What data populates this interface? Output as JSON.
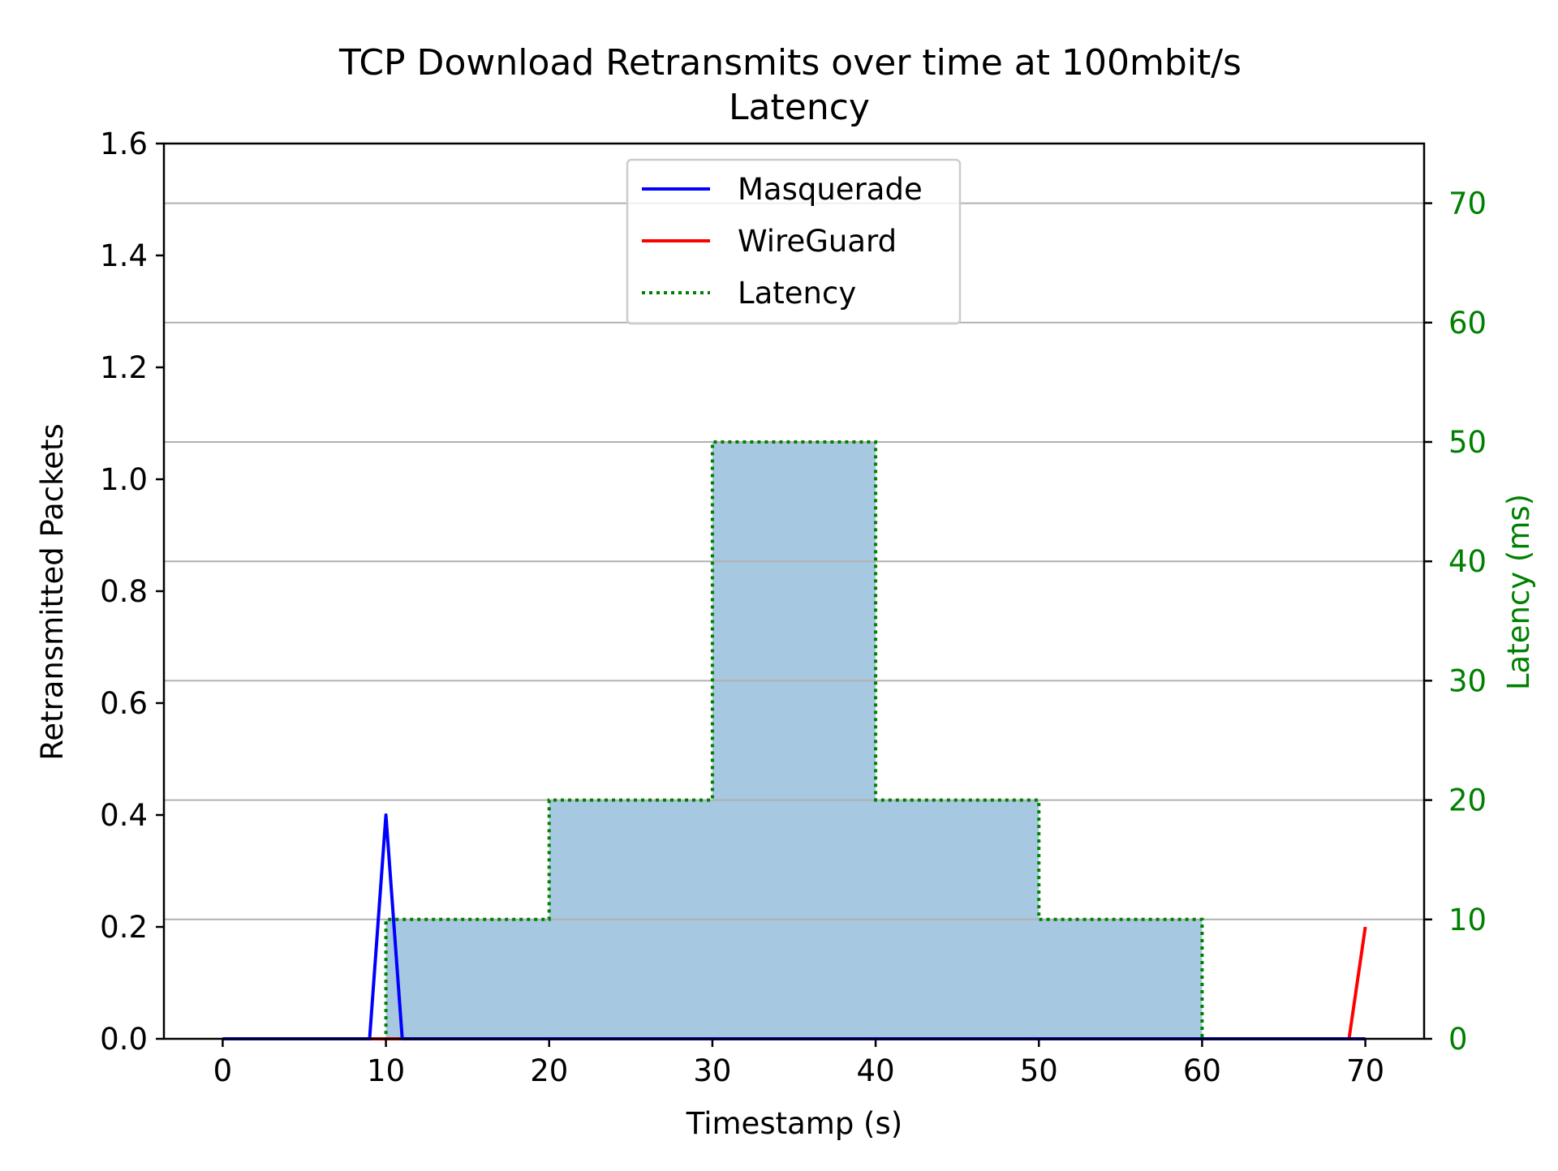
{
  "chart_data": {
    "type": "line",
    "title": "TCP Download Retransmits over time at 100mbit/s",
    "subtitle": "Latency",
    "xlabel": "Timestamp (s)",
    "ylabel": "Retransmitted Packets",
    "ylabel_right": "Latency (ms)",
    "xlim": [
      -3.6,
      73.6
    ],
    "ylim": [
      0,
      1.6
    ],
    "ylim_right": [
      0,
      75
    ],
    "xticks": [
      "0",
      "10",
      "20",
      "30",
      "40",
      "50",
      "60",
      "70"
    ],
    "yticks": [
      "0.0",
      "0.2",
      "0.4",
      "0.6",
      "0.8",
      "1.0",
      "1.2",
      "1.4",
      "1.6"
    ],
    "yticks_right": [
      "0",
      "10",
      "20",
      "30",
      "40",
      "50",
      "60",
      "70"
    ],
    "grid": "horizontal lines at right-axis ticks",
    "legend_position": "upper center",
    "colors": {
      "masquerade": "#0000ff",
      "wireguard": "#ff0000",
      "latency": "#008000",
      "fill": "#a6c8e0",
      "grid": "#b0b0b0",
      "right_axis": "#008000"
    },
    "series": [
      {
        "name": "Masquerade",
        "axis": "left",
        "style": "solid",
        "x": [
          0,
          1,
          2,
          3,
          4,
          5,
          6,
          7,
          8,
          9,
          10,
          11,
          12,
          13,
          14,
          15,
          16,
          17,
          18,
          19,
          20,
          21,
          22,
          23,
          24,
          25,
          26,
          27,
          28,
          29,
          30,
          31,
          32,
          33,
          34,
          35,
          36,
          37,
          38,
          39,
          40,
          41,
          42,
          43,
          44,
          45,
          46,
          47,
          48,
          49,
          50,
          51,
          52,
          53,
          54,
          55,
          56,
          57,
          58,
          59,
          60,
          61,
          62,
          63,
          64,
          65,
          66,
          67,
          68,
          69,
          70
        ],
        "values": [
          0,
          0,
          0,
          0,
          0,
          0,
          0,
          0,
          0,
          0,
          0.4,
          0,
          0,
          0,
          0,
          0,
          0,
          0,
          0,
          0,
          0,
          0,
          0,
          0,
          0,
          0,
          0,
          0,
          0,
          0,
          0,
          0,
          0,
          0,
          0,
          0,
          0,
          0,
          0,
          0,
          0,
          0,
          0,
          0,
          0,
          0,
          0,
          0,
          0,
          0,
          0,
          0,
          0,
          0,
          0,
          0,
          0,
          0,
          0,
          0,
          0,
          0,
          0,
          0,
          0,
          0,
          0,
          0,
          0,
          0,
          0
        ]
      },
      {
        "name": "WireGuard",
        "axis": "left",
        "style": "solid",
        "x": [
          1,
          10,
          20,
          30,
          40,
          50,
          60,
          69,
          70
        ],
        "values": [
          0,
          0,
          0,
          0,
          0,
          0,
          0,
          0,
          0.2
        ]
      },
      {
        "name": "Latency",
        "axis": "right",
        "style": "dotted-step-filled",
        "x": [
          0,
          10,
          20,
          30,
          40,
          50,
          60,
          70
        ],
        "values": [
          0,
          10,
          20,
          50,
          20,
          10,
          0,
          0
        ]
      }
    ]
  }
}
